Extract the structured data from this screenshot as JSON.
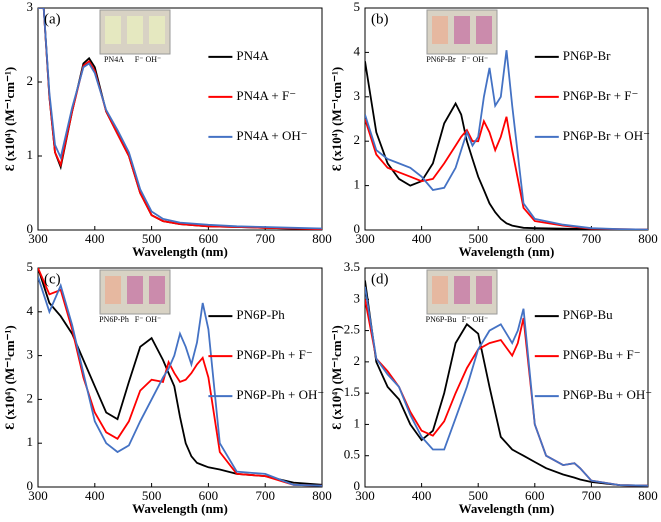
{
  "chart_data": [
    {
      "type": "line",
      "panel_label": "(a)",
      "xlabel": "Wavelength (nm)",
      "ylabel": "Ɛ (x10⁴) (M⁻¹cm⁻¹)",
      "inset_labels": [
        "PN4A",
        "F⁻ OH⁻"
      ],
      "xlim": [
        300,
        800
      ],
      "xticks": [
        300,
        400,
        500,
        600,
        700,
        800
      ],
      "ylim": [
        0,
        3
      ],
      "yticks": [
        0,
        1,
        2,
        3
      ],
      "x": [
        300,
        310,
        320,
        330,
        340,
        360,
        380,
        390,
        400,
        420,
        440,
        460,
        480,
        500,
        520,
        550,
        600,
        650,
        700,
        750,
        800
      ],
      "series": [
        {
          "name": "PN4A",
          "color": "#000000",
          "values": [
            3.0,
            3.0,
            1.8,
            1.05,
            0.85,
            1.6,
            2.25,
            2.32,
            2.2,
            1.6,
            1.3,
            1.0,
            0.5,
            0.2,
            0.12,
            0.08,
            0.05,
            0.04,
            0.03,
            0.02,
            0.01
          ]
        },
        {
          "name": "PN4A + F⁻",
          "color": "#ff0000",
          "values": [
            3.0,
            3.0,
            1.8,
            1.05,
            0.88,
            1.6,
            2.22,
            2.28,
            2.15,
            1.6,
            1.3,
            1.0,
            0.5,
            0.2,
            0.12,
            0.08,
            0.05,
            0.04,
            0.03,
            0.02,
            0.01
          ]
        },
        {
          "name": "PN4A + OH⁻",
          "color": "#4472c4",
          "values": [
            3.0,
            3.0,
            1.85,
            1.15,
            0.98,
            1.65,
            2.2,
            2.25,
            2.12,
            1.62,
            1.35,
            1.05,
            0.55,
            0.25,
            0.15,
            0.1,
            0.07,
            0.05,
            0.04,
            0.03,
            0.02
          ]
        }
      ]
    },
    {
      "type": "line",
      "panel_label": "(b)",
      "xlabel": "Wavelength (nm)",
      "ylabel": "Ɛ (x10⁴) (M⁻¹cm⁻¹)",
      "inset_labels": [
        "PN6P-Br",
        "F⁻ OH⁻"
      ],
      "xlim": [
        300,
        800
      ],
      "xticks": [
        300,
        400,
        500,
        600,
        700,
        800
      ],
      "ylim": [
        0,
        5
      ],
      "yticks": [
        0,
        1,
        2,
        3,
        4,
        5
      ],
      "x": [
        300,
        320,
        340,
        360,
        380,
        400,
        420,
        440,
        460,
        470,
        480,
        490,
        500,
        510,
        520,
        530,
        540,
        550,
        560,
        580,
        600,
        650,
        700,
        750,
        800
      ],
      "series": [
        {
          "name": "PN6P-Br",
          "color": "#000000",
          "values": [
            3.8,
            2.2,
            1.5,
            1.15,
            1.0,
            1.1,
            1.5,
            2.4,
            2.85,
            2.6,
            2.0,
            1.6,
            1.2,
            0.9,
            0.6,
            0.4,
            0.25,
            0.15,
            0.1,
            0.05,
            0.04,
            0.03,
            0.02,
            0.01,
            0.01
          ]
        },
        {
          "name": "PN6P-Br + F⁻",
          "color": "#ff0000",
          "values": [
            2.5,
            1.7,
            1.4,
            1.3,
            1.2,
            1.1,
            1.15,
            1.5,
            1.9,
            2.1,
            2.25,
            2.0,
            2.0,
            2.45,
            2.2,
            1.8,
            2.1,
            2.55,
            1.8,
            0.5,
            0.2,
            0.1,
            0.03,
            0.02,
            0.01
          ]
        },
        {
          "name": "PN6P-Br + OH⁻",
          "color": "#4472c4",
          "values": [
            2.6,
            1.8,
            1.6,
            1.5,
            1.4,
            1.2,
            0.9,
            0.95,
            1.4,
            1.8,
            2.2,
            1.9,
            2.1,
            3.0,
            3.65,
            2.8,
            3.0,
            4.05,
            2.8,
            0.6,
            0.25,
            0.12,
            0.04,
            0.02,
            0.01
          ]
        }
      ]
    },
    {
      "type": "line",
      "panel_label": "(c)",
      "xlabel": "Wavelength (nm)",
      "ylabel": "Ɛ (x10⁴) (M⁻¹cm⁻¹)",
      "inset_labels": [
        "PN6P-Ph",
        "F⁻ OH⁻"
      ],
      "xlim": [
        300,
        800
      ],
      "xticks": [
        300,
        400,
        500,
        600,
        700,
        800
      ],
      "ylim": [
        0,
        5
      ],
      "yticks": [
        0,
        1,
        2,
        3,
        4,
        5
      ],
      "x": [
        300,
        320,
        340,
        360,
        380,
        400,
        420,
        440,
        460,
        480,
        500,
        520,
        530,
        540,
        550,
        560,
        570,
        580,
        590,
        600,
        620,
        650,
        700,
        750,
        800
      ],
      "series": [
        {
          "name": "PN6P-Ph",
          "color": "#000000",
          "values": [
            5.0,
            4.2,
            3.9,
            3.5,
            2.9,
            2.3,
            1.7,
            1.55,
            2.4,
            3.2,
            3.4,
            2.9,
            2.6,
            2.3,
            1.6,
            1.0,
            0.7,
            0.55,
            0.5,
            0.45,
            0.4,
            0.3,
            0.25,
            0.1,
            0.05
          ]
        },
        {
          "name": "PN6P-Ph + F⁻",
          "color": "#ff0000",
          "values": [
            5.0,
            4.4,
            4.5,
            3.6,
            2.5,
            1.7,
            1.25,
            1.1,
            1.5,
            2.2,
            2.45,
            2.4,
            2.85,
            2.6,
            2.4,
            2.45,
            2.6,
            2.8,
            2.95,
            2.5,
            0.8,
            0.3,
            0.25,
            0.05,
            0.03
          ]
        },
        {
          "name": "PN6P-Ph + OH⁻",
          "color": "#4472c4",
          "values": [
            4.8,
            4.0,
            4.6,
            3.7,
            2.6,
            1.5,
            1.0,
            0.8,
            0.95,
            1.5,
            2.0,
            2.5,
            2.7,
            3.0,
            3.5,
            3.2,
            2.8,
            3.3,
            4.2,
            3.6,
            1.0,
            0.35,
            0.3,
            0.05,
            0.03
          ]
        }
      ]
    },
    {
      "type": "line",
      "panel_label": "(d)",
      "xlabel": "Wavelength (nm)",
      "ylabel": "Ɛ (x10⁴) (M⁻¹cm⁻¹)",
      "inset_labels": [
        "PN6P-Bu",
        "F⁻ OH⁻"
      ],
      "xlim": [
        300,
        800
      ],
      "xticks": [
        300,
        400,
        500,
        600,
        700,
        800
      ],
      "ylim": [
        0,
        3.5
      ],
      "yticks": [
        0,
        0.5,
        1,
        1.5,
        2,
        2.5,
        3,
        3.5
      ],
      "x": [
        300,
        320,
        340,
        360,
        380,
        400,
        420,
        440,
        460,
        480,
        500,
        520,
        540,
        560,
        570,
        580,
        600,
        620,
        650,
        670,
        680,
        700,
        750,
        800
      ],
      "series": [
        {
          "name": "PN6P-Bu",
          "color": "#000000",
          "values": [
            3.3,
            2.0,
            1.6,
            1.4,
            1.0,
            0.75,
            0.9,
            1.5,
            2.3,
            2.6,
            2.45,
            1.6,
            0.8,
            0.6,
            0.55,
            0.5,
            0.4,
            0.3,
            0.2,
            0.15,
            0.12,
            0.08,
            0.03,
            0.02
          ]
        },
        {
          "name": "PN6P-Bu + F⁻",
          "color": "#ff0000",
          "values": [
            3.0,
            2.05,
            1.85,
            1.6,
            1.2,
            0.9,
            0.82,
            1.05,
            1.5,
            1.9,
            2.2,
            2.3,
            2.35,
            2.1,
            2.3,
            2.7,
            1.0,
            0.5,
            0.35,
            0.38,
            0.3,
            0.1,
            0.03,
            0.02
          ]
        },
        {
          "name": "PN6P-Bu + OH⁻",
          "color": "#4472c4",
          "values": [
            3.2,
            2.05,
            1.8,
            1.6,
            1.15,
            0.8,
            0.6,
            0.6,
            1.1,
            1.6,
            2.2,
            2.5,
            2.6,
            2.3,
            2.5,
            2.85,
            1.0,
            0.5,
            0.35,
            0.38,
            0.3,
            0.1,
            0.03,
            0.02
          ]
        }
      ]
    }
  ]
}
